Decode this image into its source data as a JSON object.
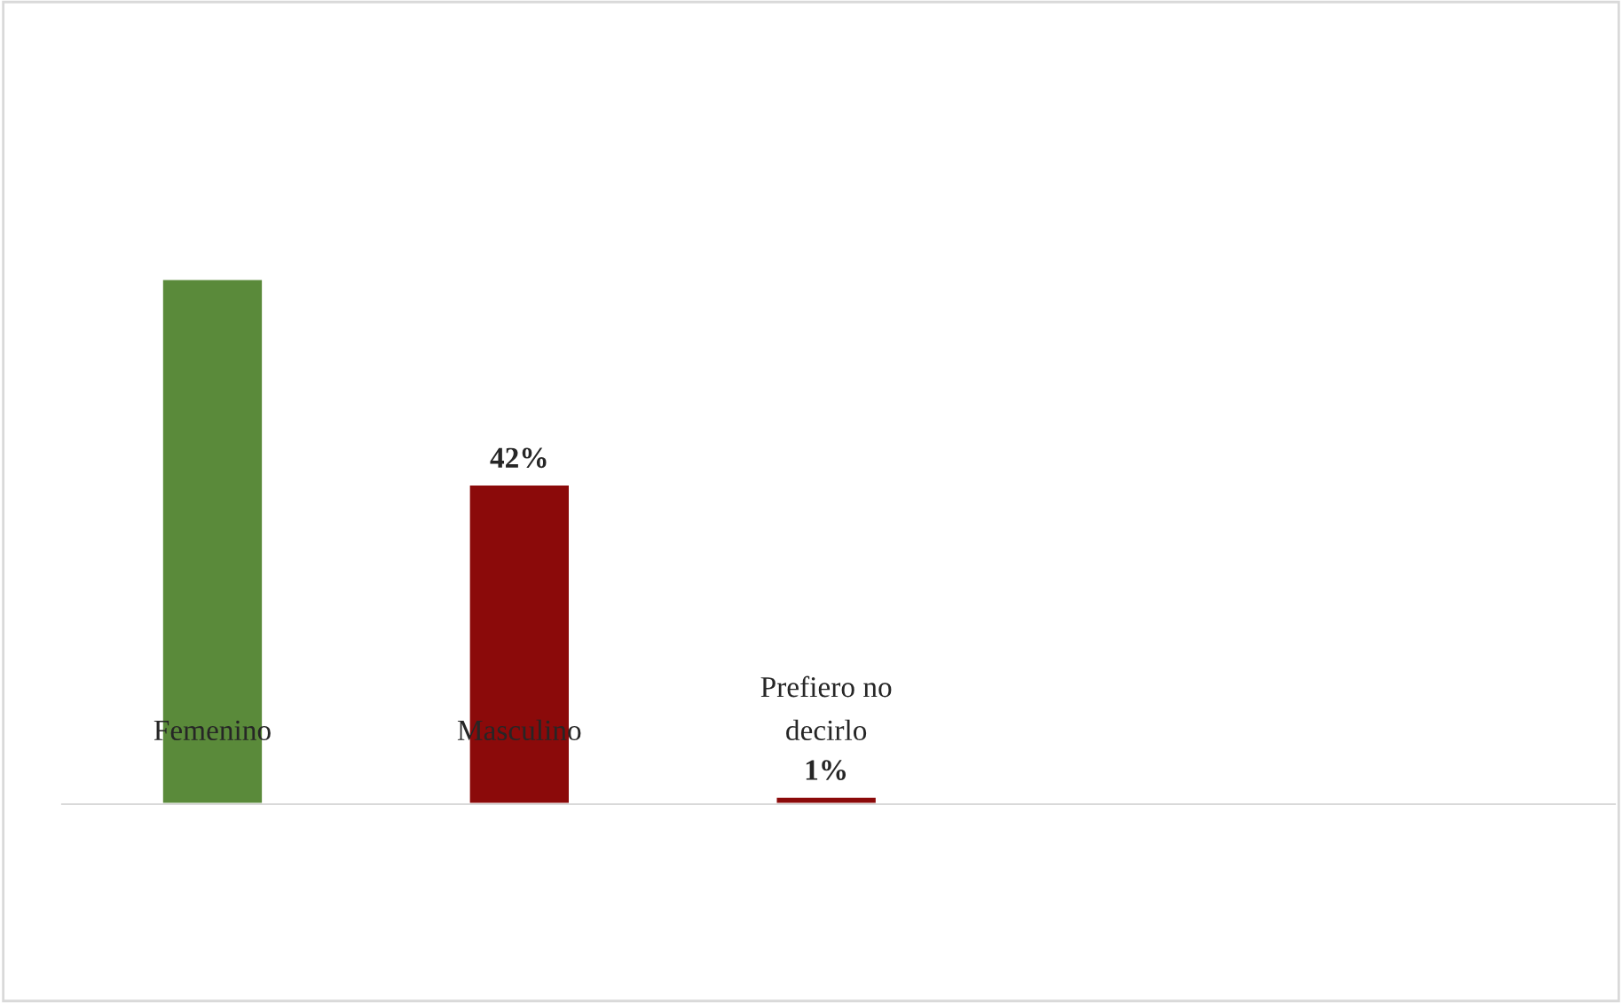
{
  "chart_data": {
    "type": "bar",
    "categories": [
      "Femenino",
      "Masculino",
      "Prefiero no decirlo"
    ],
    "values": [
      69,
      42,
      1
    ],
    "colors": [
      "#5a8a3a",
      "#8b0a0a",
      "#8b0a0a"
    ],
    "value_labels": [
      null,
      "42%",
      "1%"
    ],
    "legend": false
  }
}
